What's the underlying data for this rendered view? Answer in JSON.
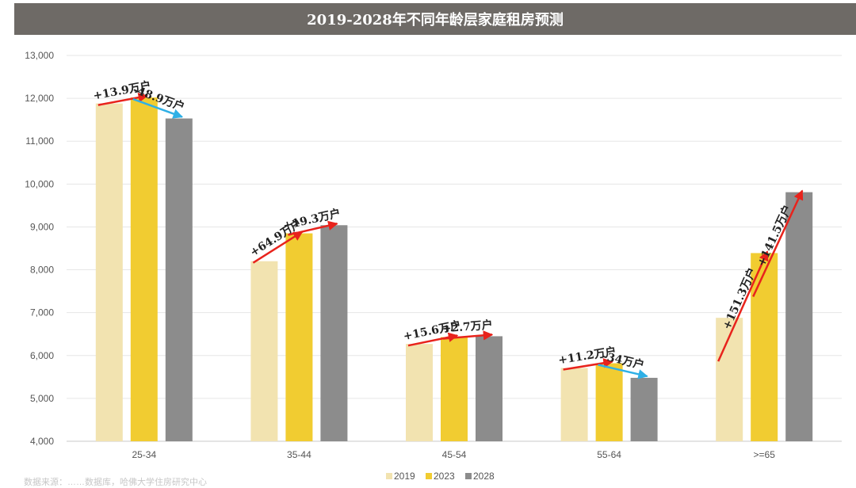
{
  "chart_data": {
    "type": "bar",
    "title": "2019-2028年不同年龄层家庭租房预测",
    "categories": [
      "25-34",
      "35-44",
      "45-54",
      "55-64",
      ">=65"
    ],
    "series": [
      {
        "name": "2019",
        "color": "#f2e3b0",
        "values": [
          11880,
          8200,
          6270,
          5710,
          6880
        ]
      },
      {
        "name": "2023",
        "color": "#f1cc31",
        "values": [
          12020,
          8850,
          6430,
          5820,
          8390
        ]
      },
      {
        "name": "2028",
        "color": "#8c8c8c",
        "values": [
          11530,
          9040,
          6450,
          5480,
          9810
        ]
      }
    ],
    "ylim": [
      4000,
      13000
    ],
    "yticks": [
      "4,000",
      "5,000",
      "6,000",
      "7,000",
      "8,000",
      "9,000",
      "10,000",
      "11,000",
      "12,000",
      "13,000"
    ],
    "yticks_values": [
      4000,
      5000,
      6000,
      7000,
      8000,
      9000,
      10000,
      11000,
      12000,
      13000
    ],
    "grid": true,
    "legend": "bottom",
    "annotations": [
      {
        "cat": 0,
        "from": 0,
        "to": 1,
        "label": "+13.9万户",
        "color": "#e8231c"
      },
      {
        "cat": 0,
        "from": 1,
        "to": 2,
        "label": "-48.9万户",
        "color": "#2fb0e6"
      },
      {
        "cat": 1,
        "from": 0,
        "to": 1,
        "label": "+64.9万户",
        "color": "#e8231c"
      },
      {
        "cat": 1,
        "from": 1,
        "to": 2,
        "label": "+19.3万户",
        "color": "#e8231c"
      },
      {
        "cat": 2,
        "from": 0,
        "to": 1,
        "label": "+15.6万户",
        "color": "#e8231c"
      },
      {
        "cat": 2,
        "from": 1,
        "to": 2,
        "label": "+2.7万户",
        "color": "#e8231c"
      },
      {
        "cat": 3,
        "from": 0,
        "to": 1,
        "label": "+11.2万户",
        "color": "#e8231c"
      },
      {
        "cat": 3,
        "from": 1,
        "to": 2,
        "label": "-34万户",
        "color": "#2fb0e6"
      },
      {
        "cat": 4,
        "from": 0,
        "to": 1,
        "label": "+151.3万户",
        "color": "#e8231c"
      },
      {
        "cat": 4,
        "from": 1,
        "to": 2,
        "label": "+141.5万户",
        "color": "#e8231c"
      }
    ]
  },
  "footnote": "数据来源：……数据库，哈佛大学住房研究中心"
}
